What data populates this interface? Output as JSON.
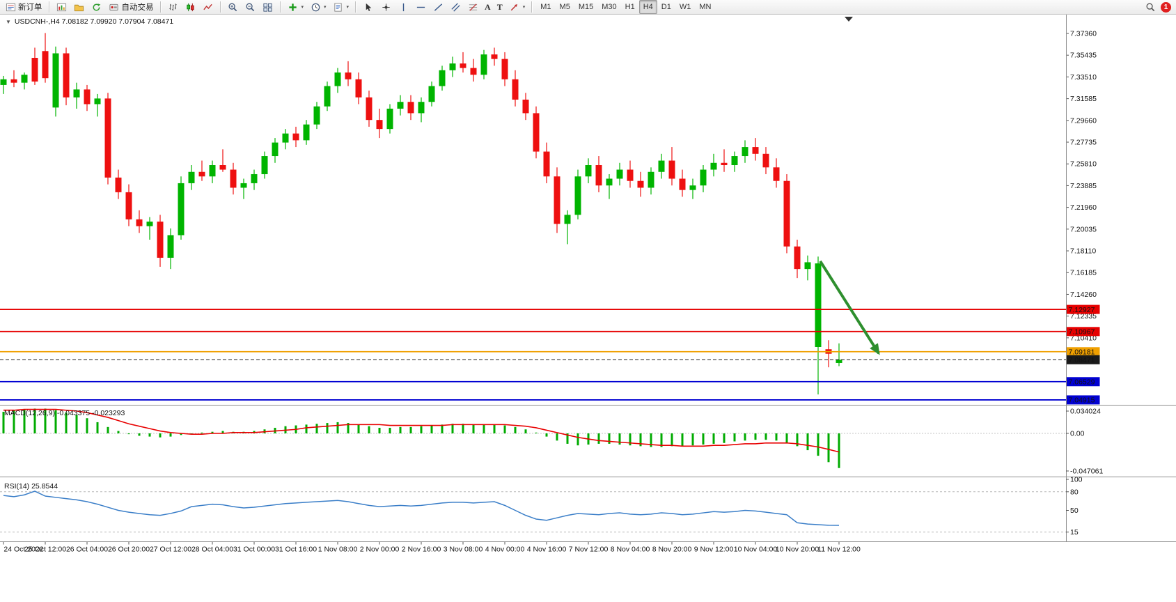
{
  "toolbar": {
    "new_order_label": "新订单",
    "auto_trading_label": "自动交易",
    "periods": [
      "M1",
      "M5",
      "M15",
      "M30",
      "H1",
      "H4",
      "D1",
      "W1",
      "MN"
    ],
    "active_period": "H4",
    "notification_badge": "1"
  },
  "chart": {
    "symbol_title": "USDCNH-,H4",
    "ohlc_title": "7.08182 7.09920 7.07904 7.08471"
  },
  "colors": {
    "candle_up": "#00b400",
    "candle_down": "#ee1010",
    "macd_hist": "#00ab00",
    "macd_signal": "#e80000",
    "rsi_line": "#3a7ec8",
    "line_red": "#e60000",
    "line_orange": "#f0a000",
    "line_blue": "#0000d2",
    "line_current": "#1a1a1a",
    "arrow_green": "#2e8f2e",
    "badge_red": "#e02020",
    "axis_text": "#111111"
  },
  "chart_data": {
    "type": "candlestick",
    "title": "USDCNH-,H4",
    "timeframe": "H4",
    "ohlc_display": {
      "open": 7.08182,
      "high": 7.0992,
      "low": 7.07904,
      "close": 7.08471
    },
    "candles": [
      [
        7.328,
        7.336,
        7.32,
        7.333
      ],
      [
        7.333,
        7.341,
        7.326,
        7.33
      ],
      [
        7.33,
        7.339,
        7.324,
        7.337
      ],
      [
        7.352,
        7.361,
        7.328,
        7.331
      ],
      [
        7.358,
        7.374,
        7.33,
        7.334
      ],
      [
        7.308,
        7.362,
        7.3,
        7.356
      ],
      [
        7.356,
        7.361,
        7.31,
        7.317
      ],
      [
        7.317,
        7.33,
        7.307,
        7.324
      ],
      [
        7.324,
        7.328,
        7.305,
        7.311
      ],
      [
        7.311,
        7.32,
        7.3,
        7.316
      ],
      [
        7.316,
        7.321,
        7.24,
        7.246
      ],
      [
        7.246,
        7.253,
        7.227,
        7.233
      ],
      [
        7.233,
        7.24,
        7.203,
        7.209
      ],
      [
        7.209,
        7.217,
        7.197,
        7.203
      ],
      [
        7.203,
        7.211,
        7.191,
        7.207
      ],
      [
        7.207,
        7.213,
        7.167,
        7.175
      ],
      [
        7.175,
        7.201,
        7.165,
        7.195
      ],
      [
        7.195,
        7.247,
        7.191,
        7.241
      ],
      [
        7.241,
        7.257,
        7.235,
        7.251
      ],
      [
        7.251,
        7.261,
        7.243,
        7.247
      ],
      [
        7.247,
        7.261,
        7.241,
        7.257
      ],
      [
        7.257,
        7.271,
        7.251,
        7.253
      ],
      [
        7.253,
        7.259,
        7.231,
        7.237
      ],
      [
        7.237,
        7.245,
        7.227,
        7.241
      ],
      [
        7.241,
        7.253,
        7.235,
        7.249
      ],
      [
        7.249,
        7.269,
        7.245,
        7.265
      ],
      [
        7.265,
        7.281,
        7.259,
        7.277
      ],
      [
        7.277,
        7.289,
        7.271,
        7.285
      ],
      [
        7.285,
        7.291,
        7.273,
        7.279
      ],
      [
        7.279,
        7.297,
        7.275,
        7.293
      ],
      [
        7.293,
        7.313,
        7.289,
        7.309
      ],
      [
        7.309,
        7.331,
        7.305,
        7.327
      ],
      [
        7.327,
        7.343,
        7.321,
        7.339
      ],
      [
        7.339,
        7.349,
        7.327,
        7.333
      ],
      [
        7.333,
        7.339,
        7.311,
        7.317
      ],
      [
        7.317,
        7.323,
        7.291,
        7.297
      ],
      [
        7.297,
        7.307,
        7.281,
        7.289
      ],
      [
        7.289,
        7.311,
        7.285,
        7.307
      ],
      [
        7.307,
        7.319,
        7.301,
        7.313
      ],
      [
        7.313,
        7.319,
        7.297,
        7.303
      ],
      [
        7.303,
        7.317,
        7.295,
        7.313
      ],
      [
        7.313,
        7.331,
        7.309,
        7.327
      ],
      [
        7.327,
        7.345,
        7.323,
        7.341
      ],
      [
        7.341,
        7.353,
        7.335,
        7.347
      ],
      [
        7.347,
        7.357,
        7.339,
        7.343
      ],
      [
        7.343,
        7.351,
        7.331,
        7.337
      ],
      [
        7.337,
        7.359,
        7.333,
        7.355
      ],
      [
        7.355,
        7.361,
        7.345,
        7.351
      ],
      [
        7.351,
        7.357,
        7.327,
        7.333
      ],
      [
        7.333,
        7.341,
        7.309,
        7.315
      ],
      [
        7.315,
        7.321,
        7.297,
        7.303
      ],
      [
        7.303,
        7.309,
        7.263,
        7.269
      ],
      [
        7.269,
        7.277,
        7.241,
        7.247
      ],
      [
        7.247,
        7.255,
        7.197,
        7.205
      ],
      [
        7.205,
        7.217,
        7.187,
        7.213
      ],
      [
        7.213,
        7.253,
        7.209,
        7.247
      ],
      [
        7.247,
        7.263,
        7.241,
        7.257
      ],
      [
        7.257,
        7.265,
        7.233,
        7.239
      ],
      [
        7.239,
        7.249,
        7.227,
        7.245
      ],
      [
        7.245,
        7.259,
        7.239,
        7.253
      ],
      [
        7.253,
        7.261,
        7.237,
        7.243
      ],
      [
        7.243,
        7.251,
        7.229,
        7.237
      ],
      [
        7.237,
        7.255,
        7.231,
        7.251
      ],
      [
        7.251,
        7.267,
        7.245,
        7.261
      ],
      [
        7.261,
        7.273,
        7.239,
        7.245
      ],
      [
        7.245,
        7.253,
        7.229,
        7.235
      ],
      [
        7.235,
        7.245,
        7.227,
        7.239
      ],
      [
        7.239,
        7.257,
        7.233,
        7.253
      ],
      [
        7.253,
        7.267,
        7.247,
        7.259
      ],
      [
        7.259,
        7.271,
        7.251,
        7.257
      ],
      [
        7.257,
        7.269,
        7.251,
        7.265
      ],
      [
        7.265,
        7.279,
        7.259,
        7.273
      ],
      [
        7.273,
        7.281,
        7.261,
        7.267
      ],
      [
        7.267,
        7.273,
        7.249,
        7.255
      ],
      [
        7.255,
        7.263,
        7.237,
        7.243
      ],
      [
        7.243,
        7.249,
        7.179,
        7.185
      ],
      [
        7.185,
        7.191,
        7.157,
        7.165
      ],
      [
        7.165,
        7.177,
        7.155,
        7.171
      ],
      [
        7.096,
        7.176,
        7.054,
        7.17
      ],
      [
        7.094,
        7.102,
        7.078,
        7.09
      ],
      [
        7.08182,
        7.0992,
        7.07904,
        7.08471
      ]
    ],
    "time_labels": [
      "24 Oct 2022",
      "25 Oct 12:00",
      "26 Oct 04:00",
      "26 Oct 20:00",
      "27 Oct 12:00",
      "28 Oct 04:00",
      "31 Oct 00:00",
      "31 Oct 16:00",
      "1 Nov 08:00",
      "2 Nov 00:00",
      "2 Nov 16:00",
      "3 Nov 08:00",
      "4 Nov 00:00",
      "4 Nov 16:00",
      "7 Nov 12:00",
      "8 Nov 04:00",
      "8 Nov 20:00",
      "9 Nov 12:00",
      "10 Nov 04:00",
      "10 Nov 20:00",
      "11 Nov 12:00"
    ],
    "price_axis": {
      "ticks": [
        "7.37360",
        "7.35435",
        "7.33510",
        "7.31585",
        "7.29660",
        "7.27735",
        "7.25810",
        "7.23885",
        "7.21960",
        "7.20035",
        "7.18110",
        "7.16185",
        "7.14260",
        "7.12335",
        "7.10410",
        "7.08485",
        "7.06560",
        "7.04635"
      ]
    },
    "price_lines": [
      {
        "label": "7.12927",
        "price": 7.12927,
        "color_key": "line_red"
      },
      {
        "label": "7.10967",
        "price": 7.10967,
        "color_key": "line_red"
      },
      {
        "label": "7.09181",
        "price": 7.09181,
        "color_key": "line_orange"
      },
      {
        "label": "7.08471",
        "price": 7.08471,
        "color_key": "line_current",
        "kind": "current"
      },
      {
        "label": "7.06529",
        "price": 7.06529,
        "color_key": "line_blue"
      },
      {
        "label": "7.04915",
        "price": 7.04915,
        "color_key": "line_blue"
      }
    ],
    "annotations": [
      {
        "type": "arrow",
        "from_bar": 78.2,
        "from_price": 7.172,
        "to_bar": 83.8,
        "to_price": 7.0904
      }
    ],
    "indicators": {
      "macd": {
        "name": "MACD(12,26,9)",
        "value_main": "-0.043375",
        "value_signal": "-0.023293",
        "axis_ticks": [
          "0.034024",
          "0.00",
          "-0.047061"
        ],
        "histogram": [
          0.027,
          0.029,
          0.03,
          0.031,
          0.031,
          0.029,
          0.026,
          0.023,
          0.019,
          0.014,
          0.008,
          0.003,
          -0.001,
          -0.003,
          -0.004,
          -0.005,
          -0.004,
          -0.002,
          0.0,
          0.001,
          0.002,
          0.003,
          0.002,
          0.002,
          0.003,
          0.005,
          0.007,
          0.009,
          0.01,
          0.011,
          0.012,
          0.013,
          0.014,
          0.013,
          0.011,
          0.009,
          0.007,
          0.007,
          0.008,
          0.008,
          0.009,
          0.01,
          0.011,
          0.012,
          0.012,
          0.011,
          0.011,
          0.011,
          0.01,
          0.008,
          0.005,
          0.001,
          -0.004,
          -0.009,
          -0.013,
          -0.015,
          -0.014,
          -0.013,
          -0.013,
          -0.014,
          -0.015,
          -0.016,
          -0.017,
          -0.017,
          -0.016,
          -0.016,
          -0.015,
          -0.014,
          -0.013,
          -0.012,
          -0.01,
          -0.009,
          -0.008,
          -0.008,
          -0.009,
          -0.012,
          -0.016,
          -0.021,
          -0.028,
          -0.036,
          -0.043375
        ],
        "signal": [
          0.029,
          0.029,
          0.03,
          0.03,
          0.03,
          0.03,
          0.029,
          0.028,
          0.026,
          0.023,
          0.02,
          0.016,
          0.012,
          0.009,
          0.006,
          0.003,
          0.001,
          0.0,
          -0.001,
          -0.001,
          0.0,
          0.0,
          0.001,
          0.001,
          0.001,
          0.002,
          0.003,
          0.004,
          0.005,
          0.007,
          0.008,
          0.009,
          0.01,
          0.011,
          0.011,
          0.011,
          0.011,
          0.01,
          0.01,
          0.01,
          0.01,
          0.01,
          0.01,
          0.011,
          0.011,
          0.011,
          0.011,
          0.011,
          0.011,
          0.01,
          0.009,
          0.007,
          0.004,
          0.001,
          -0.002,
          -0.005,
          -0.007,
          -0.009,
          -0.01,
          -0.011,
          -0.012,
          -0.013,
          -0.014,
          -0.015,
          -0.015,
          -0.016,
          -0.016,
          -0.016,
          -0.015,
          -0.015,
          -0.014,
          -0.013,
          -0.013,
          -0.012,
          -0.012,
          -0.012,
          -0.013,
          -0.015,
          -0.017,
          -0.02,
          -0.023293
        ]
      },
      "rsi": {
        "name": "RSI(14)",
        "value": "25.8544",
        "axis_ticks": [
          "100",
          "80",
          "50",
          "15"
        ],
        "levels": [
          80,
          15
        ],
        "values": [
          74,
          72,
          75,
          81,
          73,
          71,
          69,
          67,
          64,
          60,
          55,
          50,
          47,
          45,
          43,
          42,
          45,
          49,
          56,
          58,
          60,
          59,
          56,
          54,
          55,
          57,
          59,
          61,
          62,
          63,
          64,
          65,
          66,
          64,
          61,
          58,
          56,
          57,
          58,
          57,
          58,
          60,
          62,
          63,
          63,
          62,
          63,
          64,
          58,
          50,
          42,
          36,
          34,
          38,
          42,
          45,
          44,
          43,
          45,
          46,
          44,
          43,
          44,
          46,
          45,
          43,
          44,
          46,
          48,
          47,
          48,
          50,
          49,
          47,
          45,
          43,
          30,
          28,
          27,
          26,
          25.8544
        ]
      }
    }
  }
}
